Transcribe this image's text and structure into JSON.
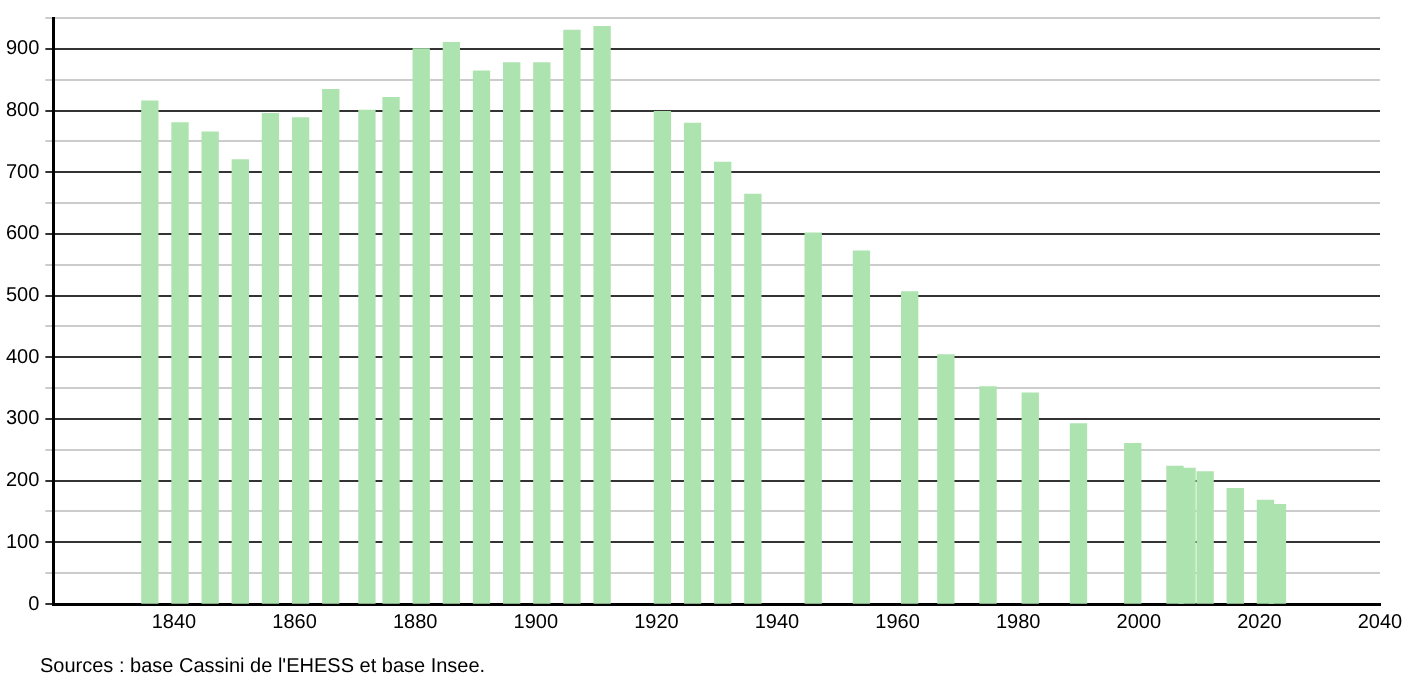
{
  "chart_data": {
    "type": "bar",
    "x": [
      1836,
      1841,
      1846,
      1851,
      1856,
      1861,
      1866,
      1872,
      1876,
      1881,
      1886,
      1891,
      1896,
      1901,
      1906,
      1911,
      1921,
      1926,
      1931,
      1936,
      1946,
      1954,
      1962,
      1968,
      1975,
      1982,
      1990,
      1999,
      2006,
      2008,
      2011,
      2016,
      2021,
      2023
    ],
    "values": [
      815,
      780,
      765,
      720,
      795,
      788,
      834,
      800,
      821,
      900,
      910,
      864,
      877,
      877,
      930,
      936,
      798,
      779,
      716,
      664,
      601,
      572,
      506,
      404,
      352,
      342,
      292,
      260,
      223,
      220,
      214,
      187,
      168,
      161
    ],
    "color": "#ace3ae",
    "xlim": [
      1820,
      2040
    ],
    "xticks": [
      1840,
      1860,
      1880,
      1900,
      1920,
      1940,
      1960,
      1980,
      2000,
      2020,
      2040
    ],
    "ylim": [
      0,
      950
    ],
    "yticks": [
      0,
      {
        "value": 50,
        "label": null
      },
      100,
      {
        "value": 150,
        "label": null
      },
      200,
      {
        "value": 250,
        "label": null
      },
      300,
      {
        "value": 350,
        "label": null
      },
      400,
      {
        "value": 450,
        "label": null
      },
      500,
      {
        "value": 550,
        "label": null
      },
      600,
      {
        "value": 650,
        "label": null
      },
      700,
      {
        "value": 750,
        "label": null
      },
      800,
      {
        "value": 850,
        "label": null
      },
      900,
      {
        "value": 950,
        "label": null
      }
    ],
    "grid": "y",
    "legend": false,
    "annotations": [
      "Sources : base Cassini de l'EHESS et base Insee."
    ]
  }
}
